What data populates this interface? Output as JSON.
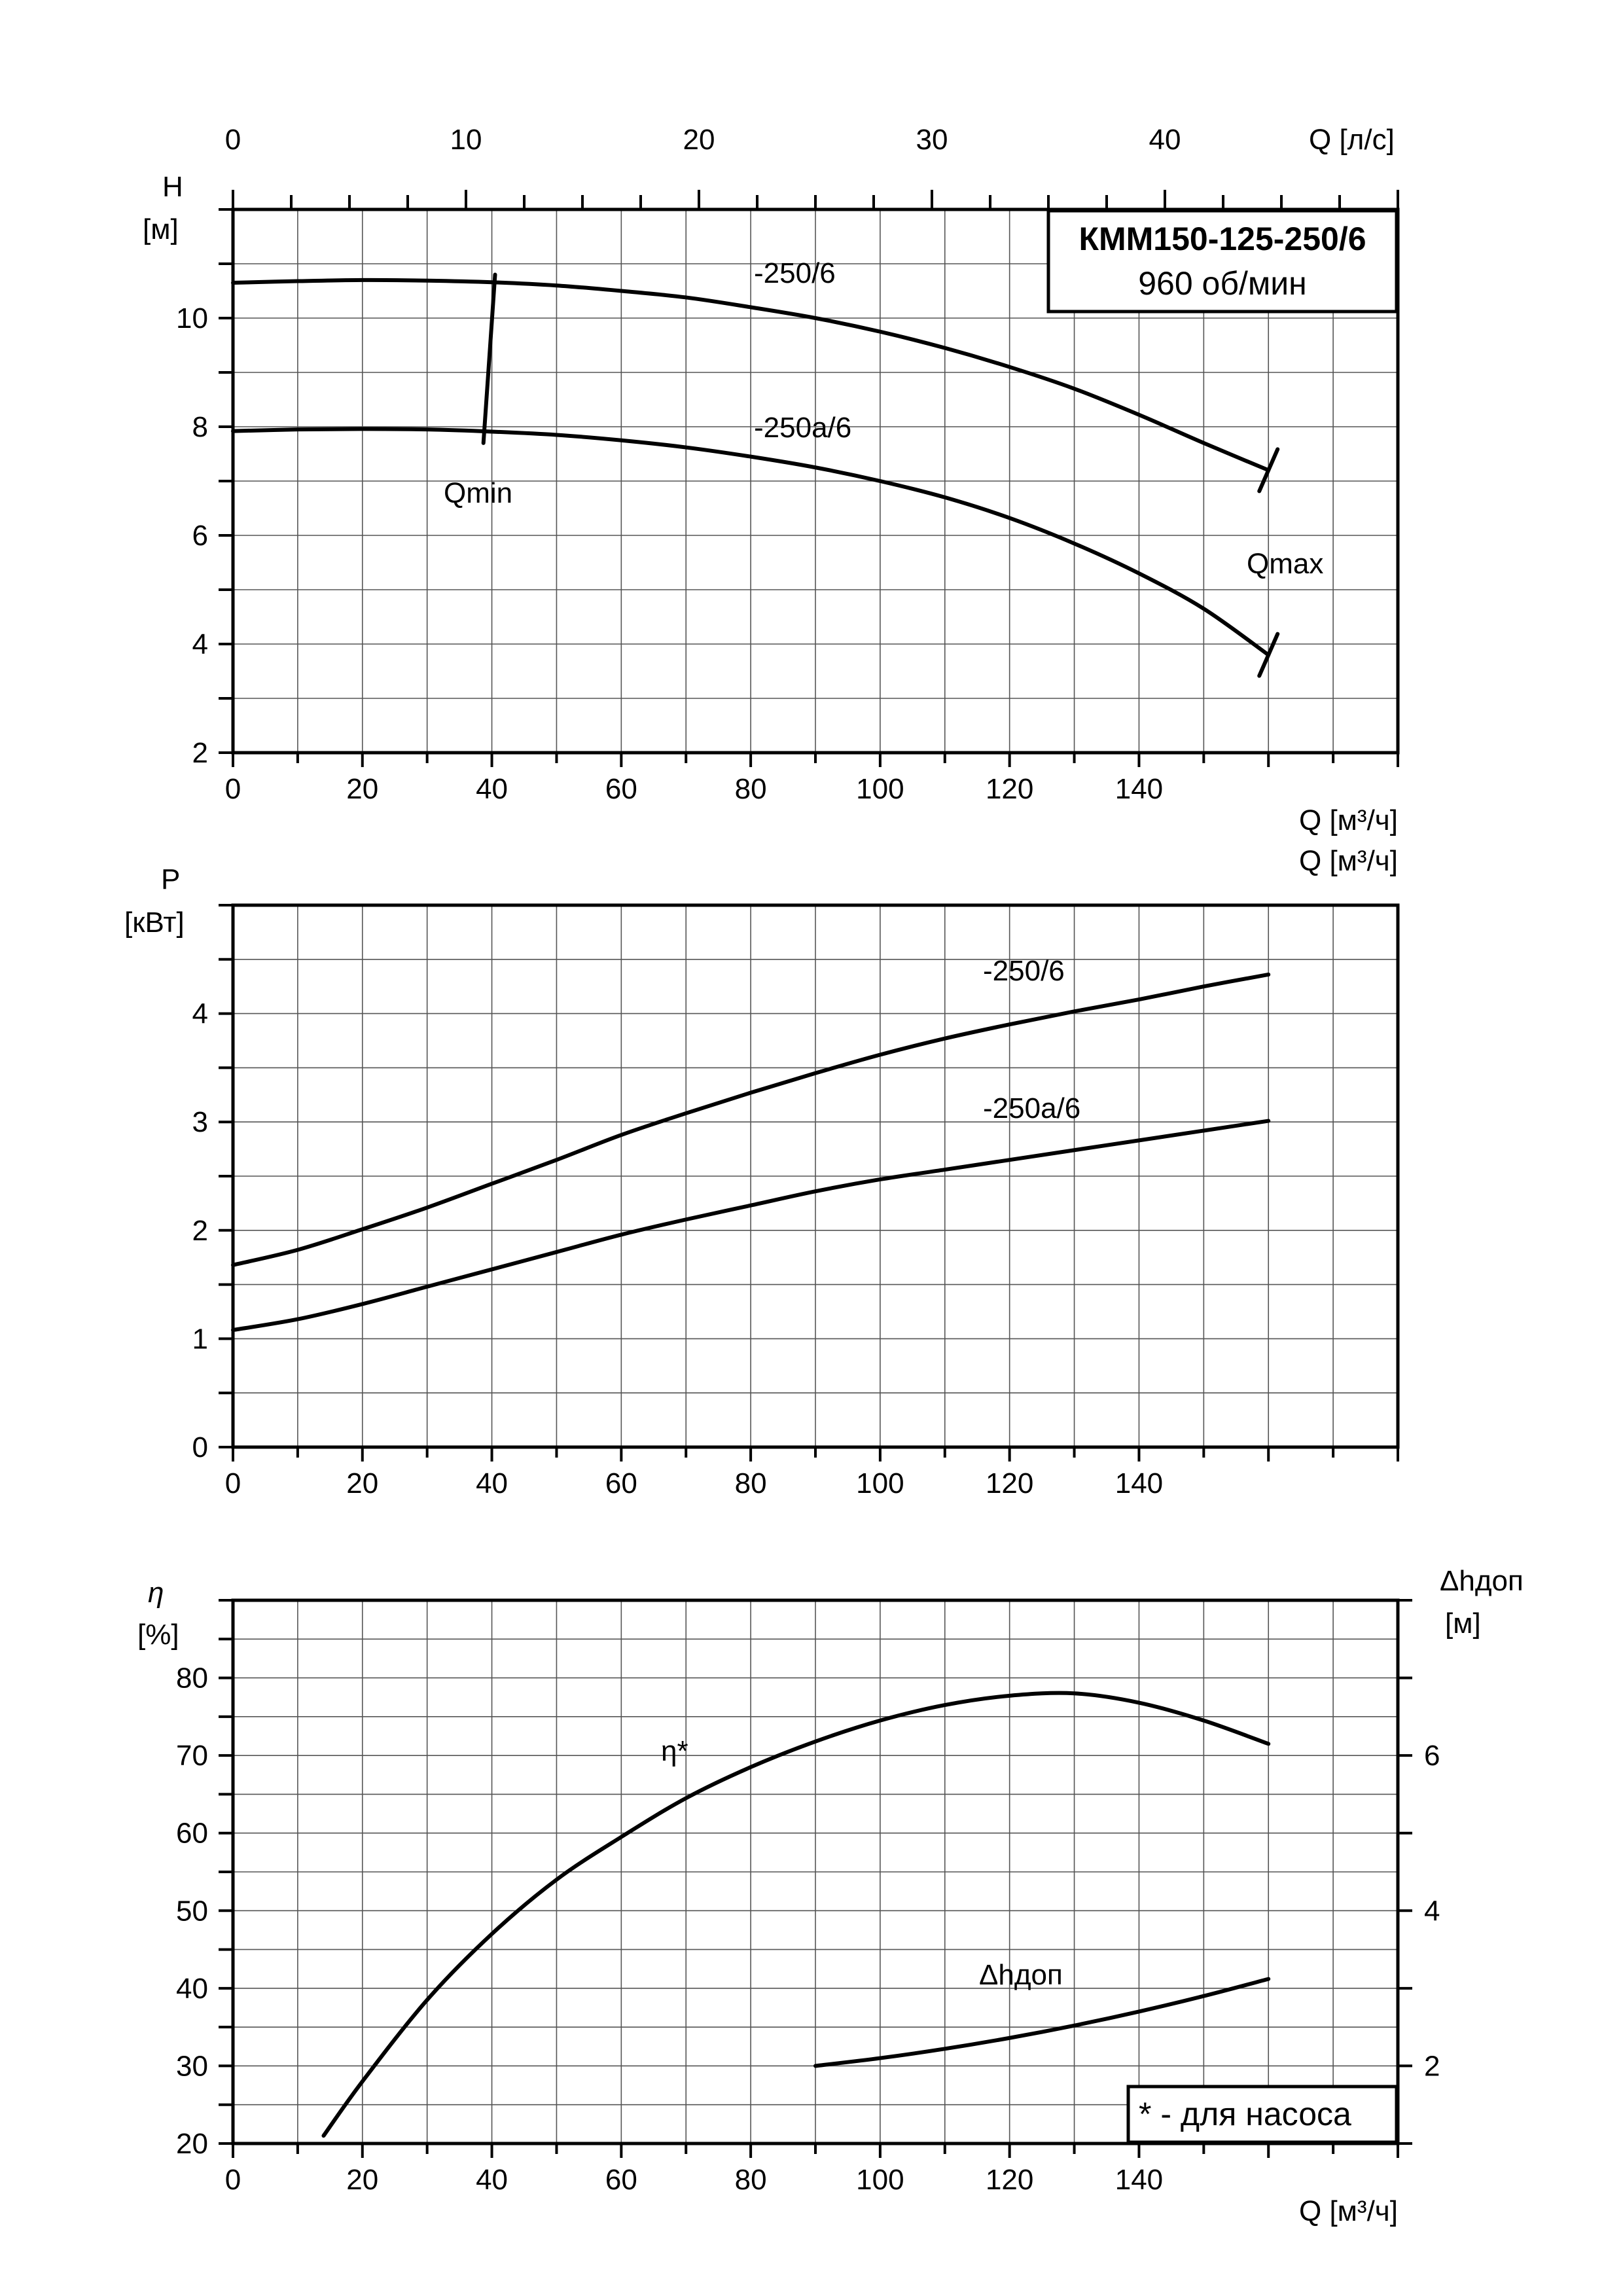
{
  "chart_data": [
    {
      "type": "line",
      "title": "КММ150-125-250/6",
      "subtitle": "960 об/мин",
      "ylabel": "H",
      "yunit": "[м]",
      "xlabel": "Q [м³/ч]",
      "x2label": "Q [л/с]",
      "xlim": [
        0,
        180
      ],
      "x2lim": [
        0,
        50
      ],
      "ylim": [
        2,
        12
      ],
      "xticks": [
        "0",
        "20",
        "40",
        "60",
        "80",
        "100",
        "120",
        "140"
      ],
      "x2ticks": [
        "0",
        "10",
        "20",
        "30",
        "40"
      ],
      "yticks": [
        "2",
        "4",
        "6",
        "8",
        "10"
      ],
      "grid": true,
      "series": [
        {
          "name": "-250/6",
          "points": [
            [
              0,
              10.65
            ],
            [
              10,
              10.68
            ],
            [
              20,
              10.7
            ],
            [
              30,
              10.69
            ],
            [
              40,
              10.66
            ],
            [
              50,
              10.6
            ],
            [
              60,
              10.5
            ],
            [
              70,
              10.38
            ],
            [
              80,
              10.2
            ],
            [
              90,
              10.0
            ],
            [
              100,
              9.75
            ],
            [
              110,
              9.45
            ],
            [
              120,
              9.1
            ],
            [
              130,
              8.7
            ],
            [
              140,
              8.22
            ],
            [
              150,
              7.7
            ],
            [
              160,
              7.2
            ]
          ]
        },
        {
          "name": "-250а/6",
          "points": [
            [
              0,
              7.92
            ],
            [
              10,
              7.95
            ],
            [
              20,
              7.96
            ],
            [
              30,
              7.95
            ],
            [
              40,
              7.91
            ],
            [
              50,
              7.85
            ],
            [
              60,
              7.75
            ],
            [
              70,
              7.62
            ],
            [
              80,
              7.45
            ],
            [
              90,
              7.25
            ],
            [
              100,
              7.0
            ],
            [
              110,
              6.7
            ],
            [
              120,
              6.32
            ],
            [
              130,
              5.85
            ],
            [
              140,
              5.3
            ],
            [
              150,
              4.65
            ],
            [
              160,
              3.8
            ]
          ]
        }
      ],
      "annotations": {
        "qmin": "Qmin",
        "qmax": "Qmax",
        "qmin_line": [
          [
            40.5,
            10.8
          ],
          [
            38.7,
            7.7
          ]
        ],
        "qmax_marks": [
          [
            160,
            7.2
          ],
          [
            160,
            3.8
          ]
        ]
      }
    },
    {
      "type": "line",
      "ylabel": "P",
      "yunit": "[кВт]",
      "xlabel": "Q [м³/ч]",
      "xlim": [
        0,
        180
      ],
      "ylim": [
        0,
        5
      ],
      "xticks": [
        "0",
        "20",
        "40",
        "60",
        "80",
        "100",
        "120",
        "140"
      ],
      "yticks": [
        "0",
        "1",
        "2",
        "3",
        "4"
      ],
      "grid": true,
      "series": [
        {
          "name": "-250/6",
          "points": [
            [
              0,
              1.68
            ],
            [
              10,
              1.82
            ],
            [
              20,
              2.01
            ],
            [
              30,
              2.21
            ],
            [
              40,
              2.43
            ],
            [
              50,
              2.65
            ],
            [
              60,
              2.88
            ],
            [
              70,
              3.08
            ],
            [
              80,
              3.27
            ],
            [
              90,
              3.45
            ],
            [
              100,
              3.62
            ],
            [
              110,
              3.77
            ],
            [
              120,
              3.9
            ],
            [
              130,
              4.02
            ],
            [
              140,
              4.13
            ],
            [
              150,
              4.25
            ],
            [
              160,
              4.36
            ]
          ]
        },
        {
          "name": "-250а/6",
          "points": [
            [
              0,
              1.08
            ],
            [
              10,
              1.18
            ],
            [
              20,
              1.32
            ],
            [
              30,
              1.48
            ],
            [
              40,
              1.64
            ],
            [
              50,
              1.8
            ],
            [
              60,
              1.96
            ],
            [
              70,
              2.1
            ],
            [
              80,
              2.23
            ],
            [
              90,
              2.36
            ],
            [
              100,
              2.47
            ],
            [
              110,
              2.56
            ],
            [
              120,
              2.65
            ],
            [
              130,
              2.74
            ],
            [
              140,
              2.83
            ],
            [
              150,
              2.92
            ],
            [
              160,
              3.01
            ]
          ]
        }
      ]
    },
    {
      "type": "line",
      "ylabel": "η",
      "yunit": "[%]",
      "y2label": "Δhдоп",
      "y2unit": "[м]",
      "xlabel": "Q [м³/ч]",
      "xlim": [
        0,
        180
      ],
      "ylim": [
        20,
        90
      ],
      "y2lim": [
        1,
        8
      ],
      "xticks": [
        "0",
        "20",
        "40",
        "60",
        "80",
        "100",
        "120",
        "140"
      ],
      "yticks": [
        "20",
        "30",
        "40",
        "50",
        "60",
        "70",
        "80"
      ],
      "y2ticks": [
        "2",
        "4",
        "6"
      ],
      "grid": true,
      "note": "* - для насоса",
      "series": [
        {
          "name": "η*",
          "axis": "left",
          "points": [
            [
              14,
              21
            ],
            [
              20,
              28
            ],
            [
              30,
              38.5
            ],
            [
              40,
              47
            ],
            [
              50,
              54
            ],
            [
              60,
              59.5
            ],
            [
              70,
              64.5
            ],
            [
              80,
              68.5
            ],
            [
              90,
              71.8
            ],
            [
              100,
              74.5
            ],
            [
              110,
              76.5
            ],
            [
              120,
              77.7
            ],
            [
              130,
              78.0
            ],
            [
              140,
              76.8
            ],
            [
              150,
              74.5
            ],
            [
              160,
              71.5
            ]
          ]
        },
        {
          "name": "Δhдоп",
          "axis": "right",
          "points": [
            [
              90,
              2.0
            ],
            [
              100,
              2.1
            ],
            [
              110,
              2.22
            ],
            [
              120,
              2.36
            ],
            [
              130,
              2.52
            ],
            [
              140,
              2.7
            ],
            [
              150,
              2.9
            ],
            [
              160,
              3.12
            ]
          ]
        }
      ]
    }
  ]
}
